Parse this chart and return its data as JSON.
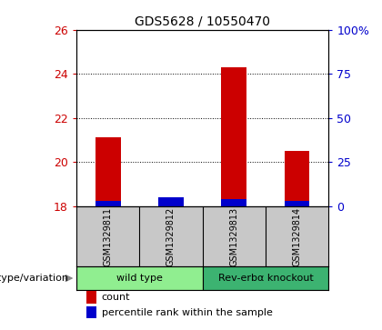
{
  "title": "GDS5628 / 10550470",
  "samples": [
    "GSM1329811",
    "GSM1329812",
    "GSM1329813",
    "GSM1329814"
  ],
  "groups": [
    {
      "name": "wild type",
      "color": "#90EE90",
      "start": 0,
      "end": 2
    },
    {
      "name": "Rev-erbα knockout",
      "color": "#3CB371",
      "start": 2,
      "end": 4
    }
  ],
  "counts": [
    21.1,
    18.2,
    24.3,
    20.5
  ],
  "percentile_ranks": [
    3,
    5,
    4,
    3
  ],
  "ylim_left": [
    18,
    26
  ],
  "ylim_right": [
    0,
    100
  ],
  "yticks_left": [
    18,
    20,
    22,
    24,
    26
  ],
  "yticks_right": [
    0,
    25,
    50,
    75,
    100
  ],
  "ytick_labels_right": [
    "0",
    "25",
    "50",
    "75",
    "100%"
  ],
  "bar_width": 0.4,
  "count_color": "#CC0000",
  "percentile_color": "#0000CC",
  "sample_box_color": "#C8C8C8",
  "plot_bg_color": "#ffffff",
  "group_label": "genotype/variation",
  "legend_count": "count",
  "legend_percentile": "percentile rank within the sample"
}
